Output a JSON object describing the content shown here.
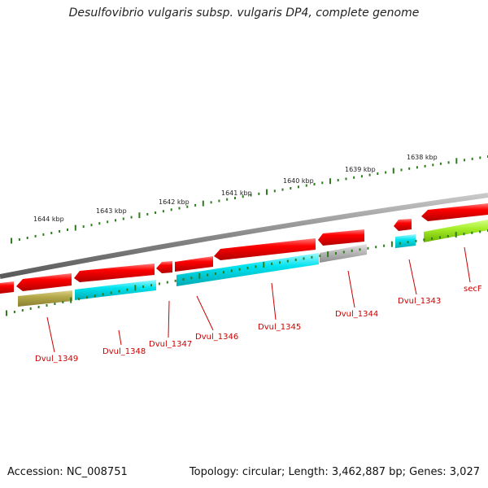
{
  "title": "Desulfovibrio vulgaris subsp. vulgaris DP4, complete genome",
  "footer": {
    "accession": "Accession: NC_008751",
    "summary": "Topology: circular; Length: 3,462,887 bp; Genes: 3,027"
  },
  "ruler": {
    "labels": [
      "1644 kbp",
      "1643 kbp",
      "1642 kbp",
      "1641 kbp",
      "1640 kbp",
      "1639 kbp",
      "1638 kbp"
    ]
  },
  "genes": [
    {
      "label": "Dvul_1349"
    },
    {
      "label": "Dvul_1348"
    },
    {
      "label": "Dvul_1347"
    },
    {
      "label": "Dvul_1346"
    },
    {
      "label": "Dvul_1345"
    },
    {
      "label": "Dvul_1344"
    },
    {
      "label": "Dvul_1343"
    },
    {
      "label": "secF"
    }
  ],
  "colors": {
    "cds": "#ff0000",
    "backbone": "#888888",
    "tick": "#2e7d1e",
    "label": "#cc0000",
    "cyan": "#00e5f0",
    "olive": "#b5a84a",
    "grey": "#bcbcbc",
    "lime": "#a6ee2a"
  }
}
